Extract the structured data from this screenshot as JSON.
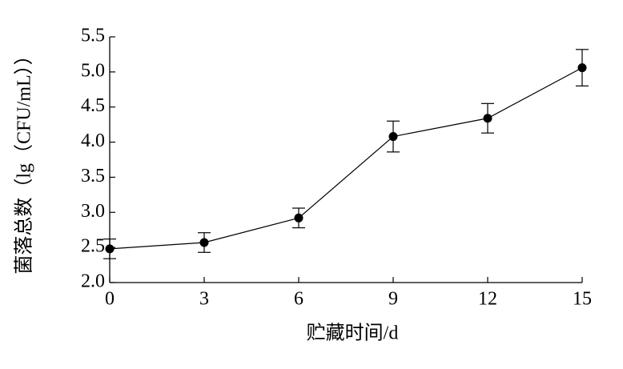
{
  "chart_data": {
    "type": "line",
    "x_label": "贮藏时间/d",
    "y_label": "菌落总数（lg（CFU/mL））",
    "x": [
      0,
      3,
      6,
      9,
      12,
      15
    ],
    "series": [
      {
        "color": "#000000",
        "values": [
          2.48,
          2.57,
          2.92,
          4.08,
          4.34,
          5.06
        ],
        "errors": [
          0.14,
          0.14,
          0.14,
          0.22,
          0.21,
          0.26
        ]
      }
    ],
    "xlim": [
      0,
      15
    ],
    "xticks": [
      0,
      3,
      6,
      9,
      12,
      15
    ],
    "ylim": [
      2.0,
      5.5
    ],
    "yticks": [
      {
        "value": 2.0,
        "label": "2.0"
      },
      2.5,
      {
        "value": 3.0,
        "label": "3.0"
      },
      3.5,
      {
        "value": 4.0,
        "label": "4.0"
      },
      4.5,
      {
        "value": 5.0,
        "label": "5.0"
      },
      5.5
    ],
    "grid": false
  }
}
